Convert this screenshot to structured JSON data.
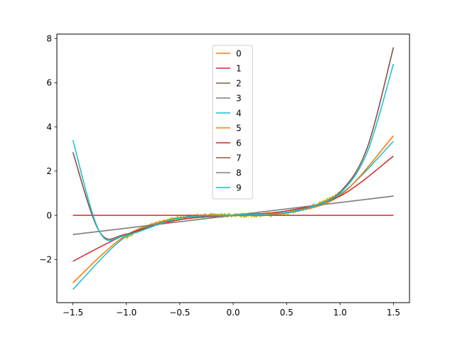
{
  "chart_data": {
    "type": "line",
    "title": "",
    "xlabel": "",
    "ylabel": "",
    "xlim": [
      -1.65,
      1.65
    ],
    "ylim": [
      -3.95,
      8.2
    ],
    "x_ticks": [
      -1.5,
      -1.0,
      -0.5,
      0.0,
      0.5,
      1.0,
      1.5
    ],
    "x_tick_labels": [
      "−1.5",
      "−1.0",
      "−0.5",
      "0.0",
      "0.5",
      "1.0",
      "1.5"
    ],
    "y_ticks": [
      -2,
      0,
      2,
      4,
      6,
      8
    ],
    "y_tick_labels": [
      "−2",
      "0",
      "2",
      "4",
      "6",
      "8"
    ],
    "grid": false,
    "legend_position": "top-center",
    "noisy_data": {
      "color": "#bcbd22",
      "x_range": [
        -1.0,
        1.0
      ],
      "approx_curve": "x^3",
      "noise_amplitude": 0.08
    },
    "series": [
      {
        "name": "0",
        "color": "#ff7f0e",
        "x": [
          -1.5,
          -1.0,
          -0.5,
          0.0,
          0.5,
          1.0,
          1.5
        ],
        "values": [
          -3.05,
          -0.9,
          -0.12,
          0.0,
          0.12,
          0.9,
          3.6
        ]
      },
      {
        "name": "1",
        "color": "#d62728",
        "x": [
          -1.5,
          1.5
        ],
        "values": [
          0.0,
          0.0
        ]
      },
      {
        "name": "2",
        "color": "#8c564b",
        "x": [
          -1.5,
          -1.25,
          -1.0,
          -0.5,
          0.0,
          0.5,
          0.75,
          1.0,
          1.25,
          1.5
        ],
        "values": [
          2.85,
          -0.75,
          -0.85,
          -0.12,
          0.0,
          0.12,
          0.42,
          1.05,
          3.0,
          7.6
        ]
      },
      {
        "name": "3",
        "color": "#7f7f7f",
        "x": [
          -1.5,
          1.5
        ],
        "values": [
          -0.87,
          0.87
        ]
      },
      {
        "name": "4",
        "color": "#17becf",
        "x": [
          -1.5,
          -1.0,
          -0.5,
          0.0,
          0.5,
          1.0,
          1.5
        ],
        "values": [
          -3.35,
          -0.95,
          -0.12,
          0.0,
          0.12,
          0.95,
          3.35
        ]
      },
      {
        "name": "5",
        "color": "#ff7f0e",
        "x": [
          -1.5,
          -1.0,
          -0.5,
          0.0,
          0.5,
          1.0,
          1.5
        ],
        "values": [
          -3.05,
          -0.9,
          -0.12,
          0.0,
          0.12,
          0.9,
          3.6
        ]
      },
      {
        "name": "6",
        "color": "#d62728",
        "x": [
          -1.5,
          -1.0,
          -0.5,
          0.0,
          0.5,
          1.0,
          1.5
        ],
        "values": [
          -2.08,
          -0.87,
          -0.2,
          0.0,
          0.2,
          0.87,
          2.68
        ]
      },
      {
        "name": "7",
        "color": "#8c564b",
        "x": [
          -1.5,
          -1.25,
          -1.0,
          -0.5,
          0.0,
          0.5,
          0.75,
          1.0,
          1.25,
          1.5
        ],
        "values": [
          2.85,
          -0.75,
          -0.85,
          -0.12,
          0.0,
          0.12,
          0.42,
          1.05,
          3.0,
          7.6
        ]
      },
      {
        "name": "8",
        "color": "#7f7f7f",
        "x": [
          -1.5,
          1.5
        ],
        "values": [
          -0.87,
          0.87
        ]
      },
      {
        "name": "9",
        "color": "#17becf",
        "x": [
          -1.5,
          -1.25,
          -1.0,
          -0.5,
          0.0,
          0.5,
          0.75,
          1.0,
          1.25,
          1.5
        ],
        "values": [
          3.4,
          -0.75,
          -0.9,
          -0.12,
          0.0,
          0.12,
          0.42,
          1.0,
          2.8,
          6.85
        ]
      }
    ]
  }
}
